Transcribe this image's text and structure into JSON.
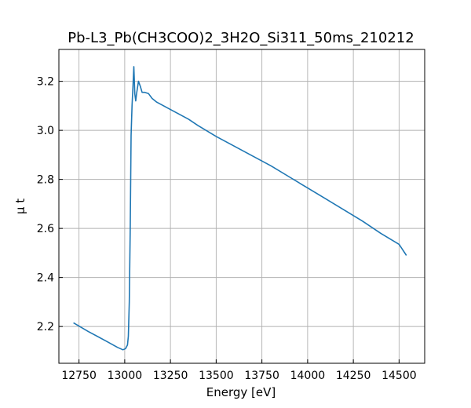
{
  "chart_data": {
    "type": "line",
    "title": "Pb-L3_Pb(CH3COO)2_3H2O_Si311_50ms_210212",
    "xlabel": "Energy [eV]",
    "ylabel": "μ t",
    "xlim": [
      12640,
      14640
    ],
    "ylim": [
      2.05,
      3.33
    ],
    "xticks": [
      12750,
      13000,
      13250,
      13500,
      13750,
      14000,
      14250,
      14500
    ],
    "yticks": [
      2.2,
      2.4,
      2.6,
      2.8,
      3.0,
      3.2
    ],
    "ytick_labels": [
      "2.2",
      "2.4",
      "2.6",
      "2.8",
      "3.0",
      "3.2"
    ],
    "grid": true,
    "line_color": "#1f77b4",
    "series": [
      {
        "x": [
          12720,
          12800,
          12900,
          12960,
          12990,
          13005,
          13015,
          13020,
          13025,
          13030,
          13035,
          13040,
          13045,
          13050,
          13055,
          13060,
          13065,
          13075,
          13085,
          13095,
          13110,
          13130,
          13150,
          13175,
          13200,
          13225,
          13250,
          13300,
          13350,
          13400,
          13500,
          13600,
          13700,
          13800,
          13900,
          14000,
          14100,
          14200,
          14300,
          14400,
          14500,
          14540
        ],
        "y": [
          2.215,
          2.18,
          2.14,
          2.115,
          2.105,
          2.11,
          2.125,
          2.16,
          2.3,
          2.6,
          2.98,
          3.1,
          3.18,
          3.26,
          3.15,
          3.12,
          3.15,
          3.2,
          3.18,
          3.155,
          3.155,
          3.15,
          3.13,
          3.115,
          3.105,
          3.095,
          3.085,
          3.065,
          3.045,
          3.02,
          2.975,
          2.935,
          2.895,
          2.855,
          2.81,
          2.765,
          2.72,
          2.675,
          2.63,
          2.58,
          2.535,
          2.49
        ]
      }
    ]
  }
}
